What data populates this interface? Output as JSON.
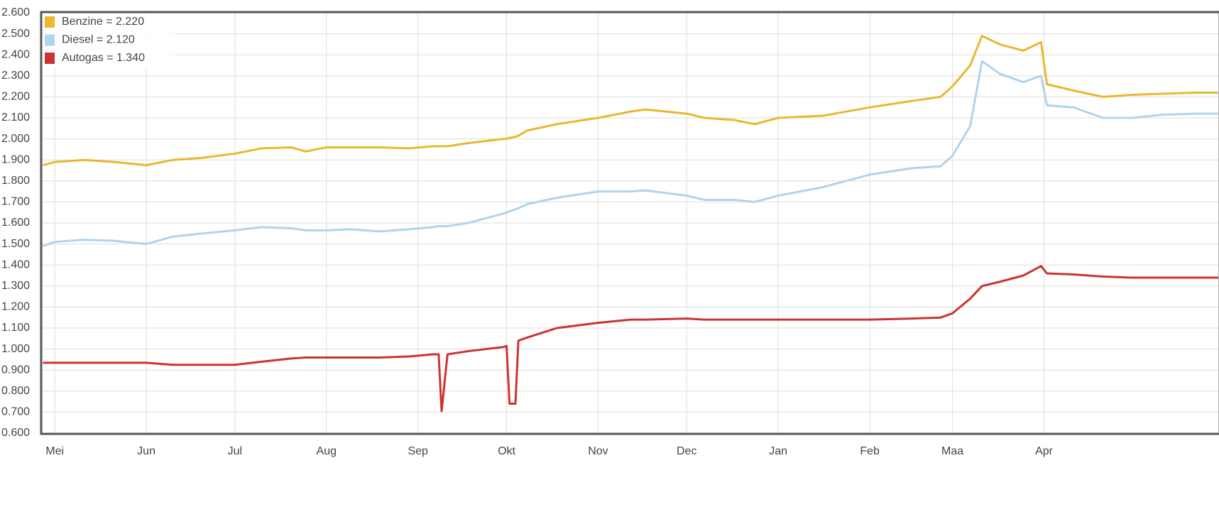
{
  "chart_data": {
    "type": "line",
    "x": [
      -4,
      0,
      10,
      20,
      31,
      40,
      50,
      61,
      70,
      80,
      85,
      92,
      100,
      110,
      120,
      128,
      130,
      131,
      133,
      140,
      152,
      153,
      154,
      156,
      157,
      160,
      170,
      184,
      195,
      200,
      214,
      220,
      230,
      237,
      245,
      260,
      276,
      290,
      300,
      304,
      310,
      314,
      320,
      328,
      334,
      336,
      345,
      355,
      365,
      375,
      386,
      394
    ],
    "series": [
      {
        "name": "Benzine = 2.220",
        "color": "#e8b830",
        "values": [
          1.875,
          1.89,
          1.9,
          1.89,
          1.875,
          1.9,
          1.91,
          1.93,
          1.955,
          1.96,
          1.94,
          1.96,
          1.96,
          1.96,
          1.955,
          1.965,
          1.965,
          1.965,
          1.965,
          1.98,
          2.0,
          2.0,
          2.005,
          2.01,
          2.015,
          2.04,
          2.07,
          2.1,
          2.13,
          2.14,
          2.12,
          2.1,
          2.09,
          2.07,
          2.1,
          2.11,
          2.15,
          2.18,
          2.2,
          2.25,
          2.35,
          2.49,
          2.45,
          2.42,
          2.46,
          2.26,
          2.23,
          2.2,
          2.21,
          2.215,
          2.22,
          2.22
        ]
      },
      {
        "name": "Diesel = 2.120",
        "color": "#b0d4ee",
        "values": [
          1.49,
          1.51,
          1.52,
          1.515,
          1.5,
          1.535,
          1.55,
          1.565,
          1.58,
          1.575,
          1.565,
          1.565,
          1.57,
          1.56,
          1.57,
          1.58,
          1.585,
          1.585,
          1.585,
          1.6,
          1.645,
          1.65,
          1.655,
          1.665,
          1.67,
          1.69,
          1.72,
          1.75,
          1.75,
          1.755,
          1.73,
          1.71,
          1.71,
          1.7,
          1.73,
          1.77,
          1.83,
          1.86,
          1.87,
          1.92,
          2.06,
          2.37,
          2.31,
          2.27,
          2.3,
          2.16,
          2.15,
          2.1,
          2.1,
          2.115,
          2.12,
          2.12
        ]
      },
      {
        "name": "Autogas = 1.340",
        "color": "#cc3333",
        "values": [
          0.935,
          0.935,
          0.935,
          0.935,
          0.935,
          0.925,
          0.925,
          0.925,
          0.94,
          0.955,
          0.96,
          0.96,
          0.96,
          0.96,
          0.965,
          0.975,
          0.975,
          0.705,
          0.975,
          0.99,
          1.01,
          1.015,
          0.74,
          0.74,
          1.04,
          1.055,
          1.1,
          1.125,
          1.14,
          1.14,
          1.145,
          1.14,
          1.14,
          1.14,
          1.14,
          1.14,
          1.14,
          1.145,
          1.15,
          1.17,
          1.24,
          1.3,
          1.32,
          1.35,
          1.395,
          1.36,
          1.355,
          1.345,
          1.34,
          1.34,
          1.34,
          1.34
        ]
      }
    ],
    "xlim": [
      -4.6,
      394.5
    ],
    "xticks": [
      {
        "value": 0,
        "label": "Mei"
      },
      {
        "value": 31,
        "label": "Jun"
      },
      {
        "value": 61,
        "label": "Jul"
      },
      {
        "value": 92,
        "label": "Aug"
      },
      {
        "value": 123,
        "label": "Sep"
      },
      {
        "value": 153,
        "label": "Okt"
      },
      {
        "value": 184,
        "label": "Nov"
      },
      {
        "value": 214,
        "label": "Dec"
      },
      {
        "value": 245,
        "label": "Jan"
      },
      {
        "value": 276,
        "label": "Feb"
      },
      {
        "value": 304,
        "label": "Maa"
      },
      {
        "value": 335,
        "label": "Apr"
      }
    ],
    "ylim": [
      0.6,
      2.6
    ],
    "yticks": [
      {
        "value": 0.6,
        "label": "0.600"
      },
      {
        "value": 0.7,
        "label": "0.700"
      },
      {
        "value": 0.8,
        "label": "0.800"
      },
      {
        "value": 0.9,
        "label": "0.900"
      },
      {
        "value": 1.0,
        "label": "1.000"
      },
      {
        "value": 1.1,
        "label": "1.100"
      },
      {
        "value": 1.2,
        "label": "1.200"
      },
      {
        "value": 1.3,
        "label": "1.300"
      },
      {
        "value": 1.4,
        "label": "1.400"
      },
      {
        "value": 1.5,
        "label": "1.500"
      },
      {
        "value": 1.6,
        "label": "1.600"
      },
      {
        "value": 1.7,
        "label": "1.700"
      },
      {
        "value": 1.8,
        "label": "1.800"
      },
      {
        "value": 1.9,
        "label": "1.900"
      },
      {
        "value": 2.0,
        "label": "2.000"
      },
      {
        "value": 2.1,
        "label": "2.100"
      },
      {
        "value": 2.2,
        "label": "2.200"
      },
      {
        "value": 2.3,
        "label": "2.300"
      },
      {
        "value": 2.4,
        "label": "2.400"
      },
      {
        "value": 2.5,
        "label": "2.500"
      },
      {
        "value": 2.6,
        "label": "2.600"
      }
    ],
    "grid": true,
    "legend": "top-left"
  }
}
